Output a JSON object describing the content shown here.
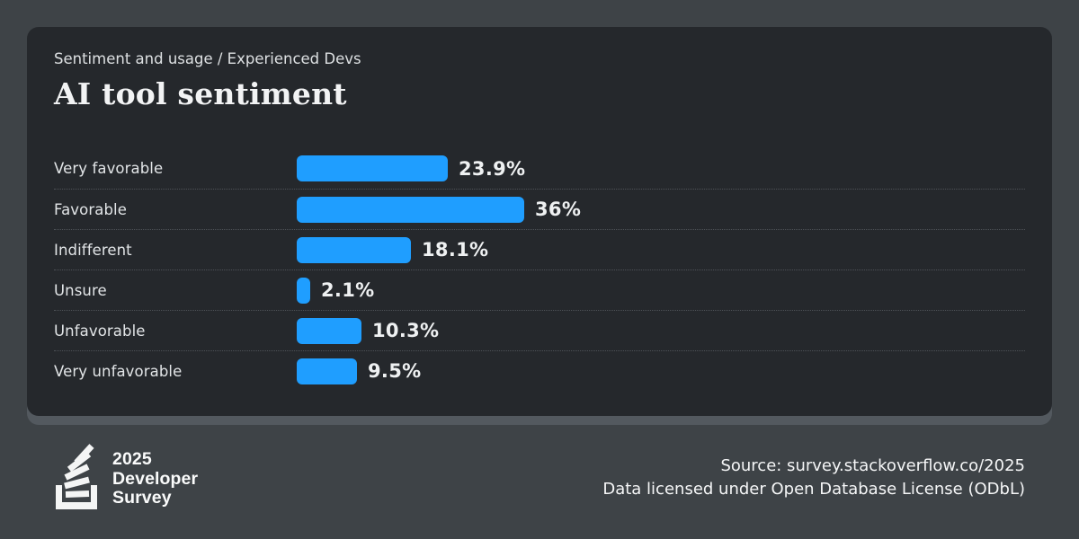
{
  "colors": {
    "page_background": "#3e4347",
    "card_background": "#25282c",
    "card_shadow": "#53595f",
    "accent_blue": "#1f9eff"
  },
  "card": {
    "breadcrumb": "Sentiment and usage / Experienced Devs",
    "title": "AI tool sentiment"
  },
  "chart_data": {
    "type": "bar",
    "orientation": "horizontal",
    "title": "AI tool sentiment",
    "subtitle": "Sentiment and usage / Experienced Devs",
    "categories": [
      "Very favorable",
      "Favorable",
      "Indifferent",
      "Unsure",
      "Unfavorable",
      "Very unfavorable"
    ],
    "values": [
      23.9,
      36,
      18.1,
      2.1,
      10.3,
      9.5
    ],
    "value_labels": [
      "23.9%",
      "36%",
      "18.1%",
      "2.1%",
      "10.3%",
      "9.5%"
    ],
    "unit": "%",
    "xlim": [
      0,
      40
    ],
    "bar_color": "#1f9eff",
    "grid": false,
    "legend": false
  },
  "footer": {
    "logo_icon": "stackoverflow-logo",
    "logo_lines": [
      "2025",
      "Developer",
      "Survey"
    ],
    "source_line_1": "Source: survey.stackoverflow.co/2025",
    "source_line_2": "Data licensed under Open Database License (ODbL)"
  }
}
